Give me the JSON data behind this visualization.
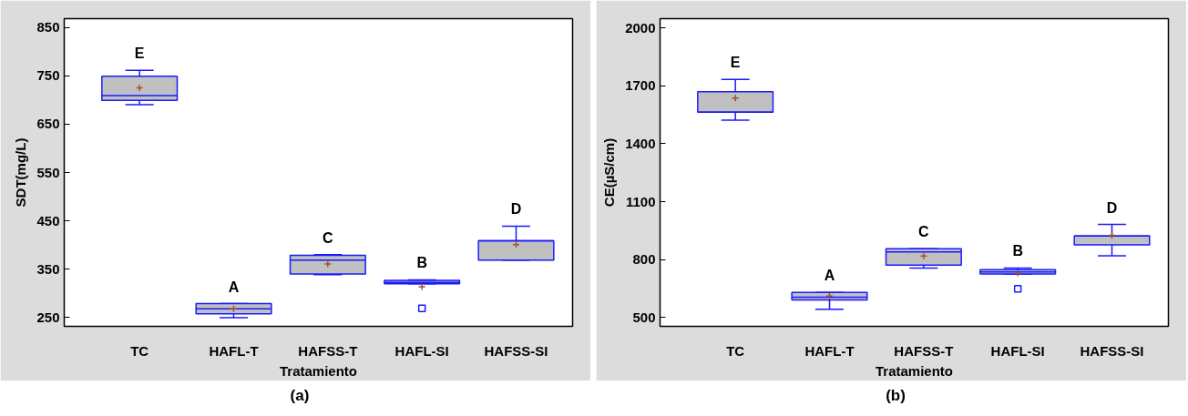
{
  "chart_data": [
    {
      "type": "box",
      "xlabel": "Tratamiento",
      "ylabel": "SDT(mg/L)",
      "categories": [
        "TC",
        "HAFL-T",
        "HAFSS-T",
        "HAFL-SI",
        "HAFSS-SI"
      ],
      "color": "#c0c0c0",
      "ylim": [
        232,
        868
      ],
      "yticks": [
        250,
        350,
        450,
        550,
        650,
        750,
        850
      ],
      "grid": false,
      "boxes": [
        {
          "low": 690,
          "q1": 699,
          "median": 709,
          "q3": 749,
          "high": 761,
          "mean": 725
        },
        {
          "low": 250,
          "q1": 258,
          "median": 268,
          "q3": 279,
          "high": 279,
          "mean": 268
        },
        {
          "low": 339,
          "q1": 340,
          "median": 369,
          "q3": 379,
          "high": 380,
          "mean": 361
        },
        {
          "low": 320,
          "q1": 320,
          "median": 323,
          "q3": 327,
          "high": 328,
          "mean": 314,
          "outliers": [
            269
          ]
        },
        {
          "low": 369,
          "q1": 369,
          "median": 409,
          "q3": 409,
          "high": 439,
          "mean": 401
        }
      ],
      "annotations": [
        "E",
        "A",
        "C",
        "B",
        "D",
        "(a)"
      ]
    },
    {
      "type": "box",
      "xlabel": "Tratamiento",
      "ylabel": "CE(µS/cm)",
      "categories": [
        "TC",
        "HAFL-T",
        "HAFSS-T",
        "HAFL-SI",
        "HAFSS-SI"
      ],
      "color": "#c0c0c0",
      "ylim": [
        454,
        2048
      ],
      "yticks": [
        500,
        800,
        1100,
        1400,
        1700,
        2000
      ],
      "grid": false,
      "boxes": [
        {
          "low": 1522,
          "q1": 1563,
          "median": 1563,
          "q3": 1669,
          "high": 1733,
          "mean": 1636
        },
        {
          "low": 543,
          "q1": 591,
          "median": 605,
          "q3": 630,
          "high": 630,
          "mean": 611
        },
        {
          "low": 756,
          "q1": 771,
          "median": 840,
          "q3": 856,
          "high": 856,
          "mean": 818
        },
        {
          "low": 725,
          "q1": 725,
          "median": 736,
          "q3": 748,
          "high": 756,
          "mean": 730,
          "outliers": [
            649
          ]
        },
        {
          "low": 820,
          "q1": 876,
          "median": 922,
          "q3": 922,
          "high": 982,
          "mean": 926
        }
      ],
      "annotations": [
        "E",
        "A",
        "C",
        "B",
        "D",
        "(b)"
      ]
    }
  ]
}
